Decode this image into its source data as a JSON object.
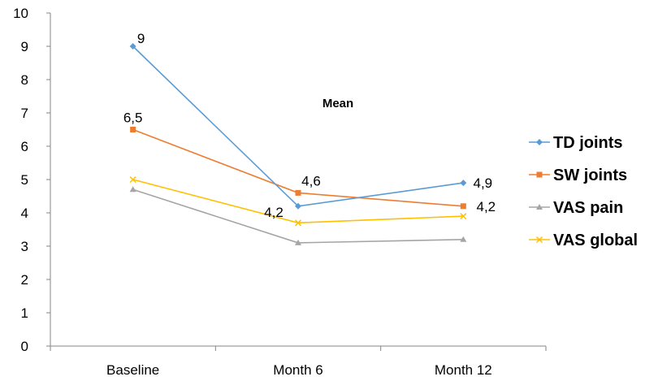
{
  "chart_data": {
    "type": "line",
    "title": "Mean",
    "xlabel": "",
    "ylabel": "",
    "categories": [
      "Baseline",
      "Month 6",
      "Month 12"
    ],
    "ylim": [
      0,
      10
    ],
    "yticks": [
      "0",
      "1",
      "2",
      "3",
      "4",
      "5",
      "6",
      "7",
      "8",
      "9",
      "10"
    ],
    "grid": false,
    "legend_position": "right",
    "series": [
      {
        "name": "TD joints",
        "values": [
          9,
          4.2,
          4.9
        ],
        "color": "#5B9BD5",
        "marker": "diamond",
        "labels": [
          "9",
          "4,2",
          "4,9"
        ]
      },
      {
        "name": "SW joints",
        "values": [
          6.5,
          4.6,
          4.2
        ],
        "color": "#ED7D31",
        "marker": "square",
        "labels": [
          "6,5",
          "4,6",
          "4,2"
        ]
      },
      {
        "name": "VAS pain",
        "values": [
          4.7,
          3.1,
          3.2
        ],
        "color": "#A5A5A5",
        "marker": "triangle",
        "labels": [
          "",
          "",
          ""
        ]
      },
      {
        "name": "VAS global",
        "values": [
          5,
          3.7,
          3.9
        ],
        "color": "#FFC000",
        "marker": "x",
        "labels": [
          "",
          "",
          ""
        ]
      }
    ]
  }
}
